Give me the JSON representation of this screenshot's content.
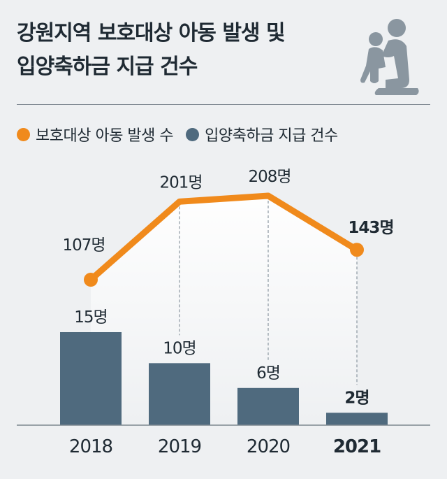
{
  "title_lines": [
    "강원지역 보호대상 아동 발생 및",
    "입양축하금 지급 건수"
  ],
  "legend": [
    {
      "label": "보호대상 아동 발생 수",
      "color": "#f08a1c"
    },
    {
      "label": "입양축하금 지급 건수",
      "color": "#4f6a7e"
    }
  ],
  "icon": "parent-child-icon",
  "chart_data": {
    "type": "bar+line",
    "categories": [
      "2018",
      "2019",
      "2020",
      "2021"
    ],
    "highlight_category": "2021",
    "series": [
      {
        "name": "보호대상 아동 발생 수",
        "type": "line",
        "color": "#f08a1c",
        "values": [
          107,
          201,
          208,
          143
        ],
        "labels": [
          "107명",
          "201명",
          "208명",
          "143명"
        ]
      },
      {
        "name": "입양축하금 지급 건수",
        "type": "bar",
        "color": "#4f6a7e",
        "values": [
          15,
          10,
          6,
          2
        ],
        "labels": [
          "15명",
          "10명",
          "6명",
          "2명"
        ]
      }
    ]
  }
}
